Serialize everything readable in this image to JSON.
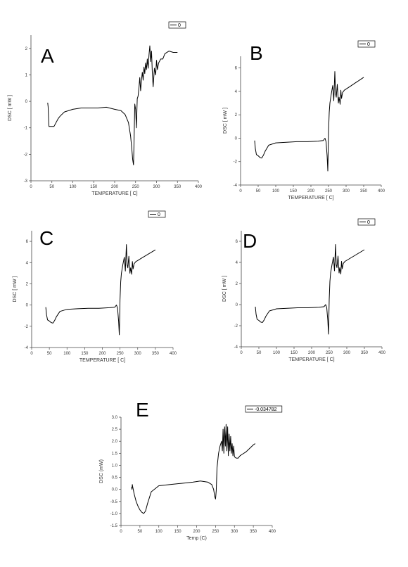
{
  "chart_data": [
    {
      "type": "line",
      "panel_label": "A",
      "xlabel": "TEMPERATURE [  C]",
      "ylabel": "DSC  [ mW ]",
      "xlim": [
        0,
        400
      ],
      "ylim": [
        -3,
        2.5
      ],
      "xticks": [
        "0",
        "50",
        "100",
        "150",
        "200",
        "250",
        "300",
        "350",
        "400"
      ],
      "yticks": [
        "-3",
        "-2",
        "-1",
        "0",
        "1",
        "2"
      ],
      "series": [
        {
          "name": "0",
          "x": [
            40,
            41,
            43,
            47,
            55,
            60,
            65,
            70,
            80,
            100,
            120,
            140,
            160,
            180,
            200,
            215,
            225,
            233,
            238,
            241,
            243,
            245,
            246,
            247,
            248,
            250,
            252,
            254,
            256,
            258,
            260,
            262,
            264,
            266,
            268,
            270,
            272,
            274,
            276,
            278,
            280,
            282,
            284,
            286,
            288,
            290,
            292,
            295,
            298,
            300,
            302,
            305,
            310,
            315,
            320,
            330,
            340,
            350
          ],
          "y": [
            -0.05,
            -0.2,
            -0.95,
            -0.95,
            -0.95,
            -0.8,
            -0.65,
            -0.55,
            -0.4,
            -0.3,
            -0.25,
            -0.25,
            -0.25,
            -0.22,
            -0.3,
            -0.35,
            -0.5,
            -0.8,
            -1.3,
            -1.8,
            -2.2,
            -2.4,
            -1.7,
            -0.9,
            -0.1,
            -0.3,
            -1.0,
            0.1,
            0.2,
            0.5,
            0.9,
            0.4,
            0.8,
            1.1,
            0.8,
            1.3,
            1.05,
            1.45,
            1.2,
            1.6,
            1.25,
            1.75,
            2.1,
            1.5,
            1.9,
            1.1,
            0.55,
            1.25,
            1.0,
            1.55,
            1.2,
            1.45,
            1.6,
            1.6,
            1.8,
            1.9,
            1.85,
            1.85
          ]
        }
      ]
    },
    {
      "type": "line",
      "panel_label": "B",
      "xlabel": "TEMPERATURE [  C]",
      "ylabel": "DSC  [ mW ]",
      "xlim": [
        0,
        400
      ],
      "ylim": [
        -4,
        7
      ],
      "xticks": [
        "0",
        "50",
        "100",
        "150",
        "200",
        "250",
        "300",
        "350",
        "400"
      ],
      "yticks": [
        "-4",
        "-2",
        "0",
        "2",
        "4",
        "6"
      ],
      "series": [
        {
          "name": "0",
          "x": [
            40,
            42,
            45,
            50,
            55,
            60,
            65,
            70,
            80,
            100,
            130,
            160,
            190,
            220,
            235,
            240,
            243,
            246,
            248,
            249,
            250,
            252,
            254,
            258,
            262,
            265,
            268,
            270,
            272,
            275,
            278,
            280,
            283,
            285,
            287,
            290,
            295,
            300,
            310,
            320,
            330,
            340,
            350
          ],
          "y": [
            -0.2,
            -0.9,
            -1.4,
            -1.5,
            -1.65,
            -1.7,
            -1.45,
            -1.1,
            -0.6,
            -0.4,
            -0.35,
            -0.3,
            -0.3,
            -0.25,
            -0.2,
            0.0,
            -0.3,
            -1.5,
            -2.8,
            -1.2,
            0.5,
            2.2,
            3.0,
            3.8,
            4.5,
            3.2,
            5.7,
            3.8,
            3.5,
            4.6,
            3.0,
            3.5,
            2.9,
            4.1,
            3.4,
            3.9,
            4.1,
            4.2,
            4.4,
            4.6,
            4.8,
            5.0,
            5.2
          ]
        }
      ]
    },
    {
      "type": "line",
      "panel_label": "C",
      "xlabel": "TEMPERATURE [  C]",
      "ylabel": "DSC  [ mW ]",
      "xlim": [
        0,
        400
      ],
      "ylim": [
        -4,
        7
      ],
      "xticks": [
        "0",
        "50",
        "100",
        "150",
        "200",
        "250",
        "300",
        "350",
        "400"
      ],
      "yticks": [
        "-4",
        "-2",
        "0",
        "2",
        "4",
        "6"
      ],
      "series": [
        {
          "name": "0",
          "x": [
            40,
            42,
            45,
            50,
            55,
            60,
            65,
            70,
            80,
            100,
            130,
            160,
            190,
            220,
            235,
            240,
            243,
            246,
            248,
            249,
            250,
            252,
            254,
            258,
            262,
            265,
            268,
            270,
            272,
            275,
            278,
            280,
            283,
            285,
            287,
            290,
            295,
            300,
            310,
            320,
            330,
            340,
            350
          ],
          "y": [
            -0.2,
            -0.9,
            -1.4,
            -1.5,
            -1.65,
            -1.7,
            -1.45,
            -1.1,
            -0.6,
            -0.4,
            -0.35,
            -0.3,
            -0.3,
            -0.25,
            -0.2,
            0.0,
            -0.3,
            -1.5,
            -2.8,
            -1.2,
            0.5,
            2.2,
            3.0,
            3.8,
            4.5,
            3.2,
            5.7,
            3.8,
            3.5,
            4.6,
            3.0,
            3.5,
            2.9,
            4.1,
            3.4,
            3.9,
            4.1,
            4.2,
            4.4,
            4.6,
            4.8,
            5.0,
            5.2
          ]
        }
      ]
    },
    {
      "type": "line",
      "panel_label": "D",
      "xlabel": "TEMPERATURE [  C]",
      "ylabel": "DSC  [ mW ]",
      "xlim": [
        0,
        400
      ],
      "ylim": [
        -4,
        7
      ],
      "xticks": [
        "0",
        "50",
        "100",
        "150",
        "200",
        "250",
        "300",
        "350",
        "400"
      ],
      "yticks": [
        "-4",
        "-2",
        "0",
        "2",
        "4",
        "6"
      ],
      "series": [
        {
          "name": "0",
          "x": [
            40,
            42,
            45,
            50,
            55,
            60,
            65,
            70,
            80,
            100,
            130,
            160,
            190,
            220,
            235,
            240,
            243,
            246,
            248,
            249,
            250,
            252,
            254,
            258,
            262,
            265,
            268,
            270,
            272,
            275,
            278,
            280,
            283,
            285,
            287,
            290,
            295,
            300,
            310,
            320,
            330,
            340,
            350
          ],
          "y": [
            -0.2,
            -0.9,
            -1.4,
            -1.5,
            -1.65,
            -1.7,
            -1.45,
            -1.1,
            -0.6,
            -0.4,
            -0.35,
            -0.3,
            -0.3,
            -0.25,
            -0.2,
            0.0,
            -0.3,
            -1.5,
            -2.8,
            -1.2,
            0.5,
            2.2,
            3.0,
            3.8,
            4.5,
            3.2,
            5.7,
            3.8,
            3.5,
            4.6,
            3.0,
            3.5,
            2.9,
            4.1,
            3.4,
            3.9,
            4.1,
            4.2,
            4.4,
            4.6,
            4.8,
            5.0,
            5.2
          ]
        }
      ]
    },
    {
      "type": "line",
      "panel_label": "E",
      "xlabel": "Temp (C)",
      "ylabel": "DSC (mW)",
      "xlim": [
        0,
        400
      ],
      "ylim": [
        -1.5,
        3.0
      ],
      "xticks": [
        "0",
        "50",
        "100",
        "150",
        "200",
        "250",
        "300",
        "350",
        "400"
      ],
      "yticks": [
        "-1.5",
        "-1.0",
        "-0.5",
        "0.0",
        "0.5",
        "1.0",
        "1.5",
        "2.0",
        "2.5",
        "3.0"
      ],
      "series": [
        {
          "name": "-0.034782",
          "x": [
            28,
            29,
            30,
            31,
            35,
            40,
            45,
            50,
            55,
            60,
            65,
            70,
            80,
            100,
            130,
            160,
            190,
            210,
            230,
            240,
            245,
            248,
            250,
            252,
            254,
            258,
            262,
            266,
            268,
            270,
            272,
            274,
            276,
            278,
            280,
            282,
            284,
            286,
            288,
            290,
            292,
            294,
            296,
            298,
            300,
            305,
            310,
            315,
            320,
            330,
            340,
            350,
            355
          ],
          "y": [
            0.1,
            0.0,
            0.2,
            0.1,
            -0.2,
            -0.5,
            -0.7,
            -0.85,
            -0.95,
            -1.0,
            -0.9,
            -0.6,
            -0.1,
            0.15,
            0.2,
            0.25,
            0.3,
            0.35,
            0.3,
            0.2,
            0.0,
            -0.3,
            -0.4,
            -0.05,
            0.9,
            1.5,
            1.8,
            2.0,
            1.6,
            2.5,
            1.5,
            2.6,
            1.8,
            2.7,
            1.6,
            2.6,
            1.4,
            2.3,
            1.6,
            2.2,
            1.5,
            1.9,
            1.4,
            1.8,
            1.35,
            1.3,
            1.3,
            1.4,
            1.45,
            1.55,
            1.7,
            1.85,
            1.9
          ]
        }
      ]
    }
  ]
}
